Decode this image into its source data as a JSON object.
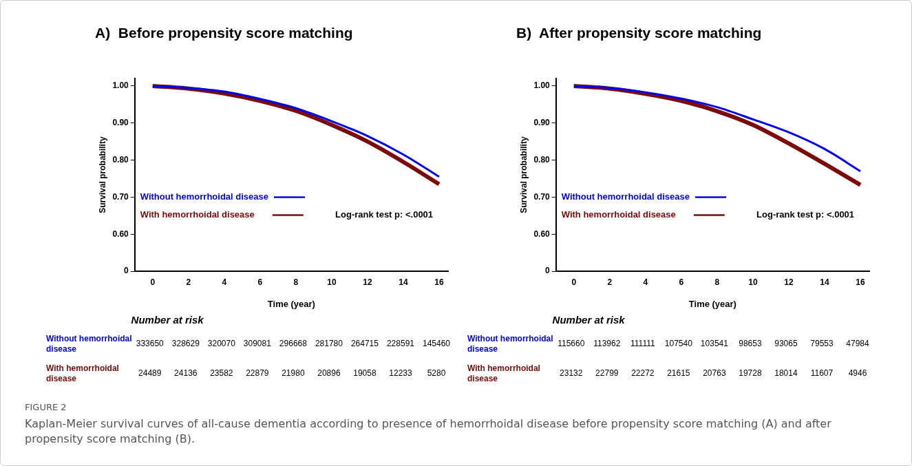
{
  "chart_data": [
    {
      "type": "line",
      "title": "A)  Before propensity score matching",
      "xlabel": "Time (year)",
      "ylabel": "Survival probability",
      "x": [
        0,
        2,
        4,
        6,
        8,
        10,
        12,
        14,
        16
      ],
      "xlim": [
        -1,
        16.5
      ],
      "xticks": [
        0,
        2,
        4,
        6,
        8,
        10,
        12,
        14,
        16
      ],
      "ylim": [
        0.5,
        1.02
      ],
      "yticks": [
        {
          "value": 0.5,
          "label": "0"
        },
        {
          "value": 0.6,
          "label": "0.60"
        },
        {
          "value": 0.7,
          "label": "0.70"
        },
        {
          "value": 0.8,
          "label": "0.80"
        },
        {
          "value": 0.9,
          "label": "0.90"
        },
        {
          "value": 1,
          "label": "1.00"
        }
      ],
      "grid": false,
      "legend": "bottom left",
      "marker": "none",
      "line_style": "solid",
      "series": [
        {
          "name": "Without hemorrhoidal disease",
          "color": "#0000ee",
          "values": [
            1.0,
            0.995,
            0.985,
            0.965,
            0.94,
            0.905,
            0.865,
            0.815,
            0.755
          ]
        },
        {
          "name": "With hemorrhoidal disease",
          "color": "#7b0a0a",
          "values": [
            1.0,
            0.993,
            0.98,
            0.96,
            0.933,
            0.895,
            0.85,
            0.795,
            0.735
          ]
        }
      ],
      "annotations": [
        "Log-rank test p: <.0001",
        "Number at risk",
        "Without hemorrhoidal disease",
        "333650",
        "328629",
        "320070",
        "309081",
        "296668",
        "281780",
        "264715",
        "228591",
        "145460",
        "With hemorrhoidal disease",
        "24489",
        "24136",
        "23582",
        "22879",
        "21980",
        "20896",
        "19058",
        "12233",
        "5280",
        "FIGURE 2",
        "Kaplan-Meier survival curves of all-cause dementia according to presence of hemorrhoidal disease before propensity score matching (A) and after propensity score matching (B)."
      ]
    },
    {
      "type": "line",
      "title": "B)  After propensity score matching",
      "xlabel": "Time (year)",
      "ylabel": "Survival probability",
      "x": [
        0,
        2,
        4,
        6,
        8,
        10,
        12,
        14,
        16
      ],
      "xlim": [
        -1,
        16.5
      ],
      "xticks": [
        0,
        2,
        4,
        6,
        8,
        10,
        12,
        14,
        16
      ],
      "ylim": [
        0.5,
        1.02
      ],
      "yticks": [
        {
          "value": 0.5,
          "label": "0"
        },
        {
          "value": 0.6,
          "label": "0.60"
        },
        {
          "value": 0.7,
          "label": "0.70"
        },
        {
          "value": 0.8,
          "label": "0.80"
        },
        {
          "value": 0.9,
          "label": "0.90"
        },
        {
          "value": 1,
          "label": "1.00"
        }
      ],
      "grid": false,
      "legend": "bottom left",
      "marker": "none",
      "line_style": "solid",
      "series": [
        {
          "name": "Without hemorrhoidal disease",
          "color": "#0000ee",
          "values": [
            1.0,
            0.995,
            0.983,
            0.966,
            0.943,
            0.91,
            0.875,
            0.83,
            0.77
          ]
        },
        {
          "name": "With hemorrhoidal disease",
          "color": "#7b0a0a",
          "values": [
            1.0,
            0.993,
            0.979,
            0.96,
            0.932,
            0.895,
            0.845,
            0.79,
            0.733
          ]
        }
      ],
      "annotations": [
        "Log-rank test p: <.0001",
        "Number at risk",
        "Without hemorrhoidal disease",
        "115660",
        "113962",
        "111111",
        "107540",
        "103541",
        "98653",
        "93065",
        "79553",
        "47984",
        "With hemorrhoidal disease",
        "23132",
        "22799",
        "22272",
        "21615",
        "20763",
        "19728",
        "18014",
        "11607",
        "4946"
      ]
    }
  ]
}
